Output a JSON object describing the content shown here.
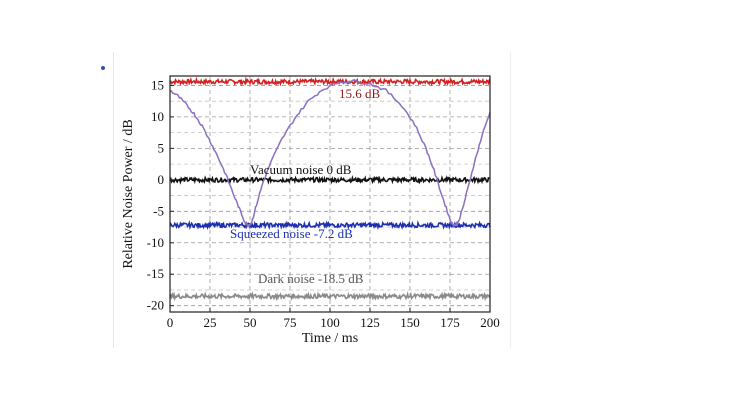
{
  "chart_data": {
    "type": "line",
    "xlabel": "Time / ms",
    "ylabel": "Relative Noise Power  / dB",
    "xlim": [
      0,
      200
    ],
    "ylim": [
      -21,
      16.5
    ],
    "x_ticks": [
      "0",
      "25",
      "50",
      "75",
      "100",
      "125",
      "150",
      "175",
      "200"
    ],
    "y_ticks": [
      "15",
      "10",
      "5",
      "0",
      "-5",
      "-10",
      "-15",
      "-20"
    ],
    "grid": true,
    "series": [
      {
        "key": "red",
        "color": "#d42020",
        "level": 15.6
      },
      {
        "key": "vacuum",
        "color": "#111111",
        "level": 0
      },
      {
        "key": "squeezed",
        "color": "#1c2fb0",
        "level": -7.2
      },
      {
        "key": "dark",
        "color": "#8a8a8a",
        "level": -18.5
      },
      {
        "key": "sweep",
        "color": "#8a70c0",
        "points": [
          [
            0,
            14.2
          ],
          [
            5,
            13.3
          ],
          [
            10,
            12
          ],
          [
            15,
            10.5
          ],
          [
            20,
            8.6
          ],
          [
            25,
            6.2
          ],
          [
            30,
            3.6
          ],
          [
            35,
            0.8
          ],
          [
            40,
            -2.5
          ],
          [
            44,
            -5
          ],
          [
            47,
            -6.8
          ],
          [
            49,
            -7.2
          ],
          [
            51,
            -6.8
          ],
          [
            54,
            -4
          ],
          [
            58,
            -0.5
          ],
          [
            63,
            2.8
          ],
          [
            70,
            6.5
          ],
          [
            78,
            9.8
          ],
          [
            86,
            12.4
          ],
          [
            95,
            14.3
          ],
          [
            105,
            15.5
          ],
          [
            115,
            15.7
          ],
          [
            125,
            15.3
          ],
          [
            135,
            14.2
          ],
          [
            145,
            11.8
          ],
          [
            153,
            8.8
          ],
          [
            160,
            5
          ],
          [
            165,
            1.5
          ],
          [
            170,
            -2.5
          ],
          [
            174,
            -5.5
          ],
          [
            176,
            -6.9
          ],
          [
            178,
            -7.2
          ],
          [
            180,
            -6.8
          ],
          [
            183,
            -4.5
          ],
          [
            186,
            -1.5
          ],
          [
            190,
            2.5
          ],
          [
            195,
            7
          ],
          [
            200,
            10.8
          ]
        ]
      }
    ],
    "annotations": [
      {
        "text": "15.6  dB",
        "color": "#8b1a1a"
      },
      {
        "text": "Vacuum noise   0  dB",
        "color": "#111111"
      },
      {
        "text": "Squeezed noise    -7.2  dB",
        "color": "#1c2fb0"
      },
      {
        "text": "Dark noise   -18.5  dB",
        "color": "#555555"
      }
    ]
  }
}
